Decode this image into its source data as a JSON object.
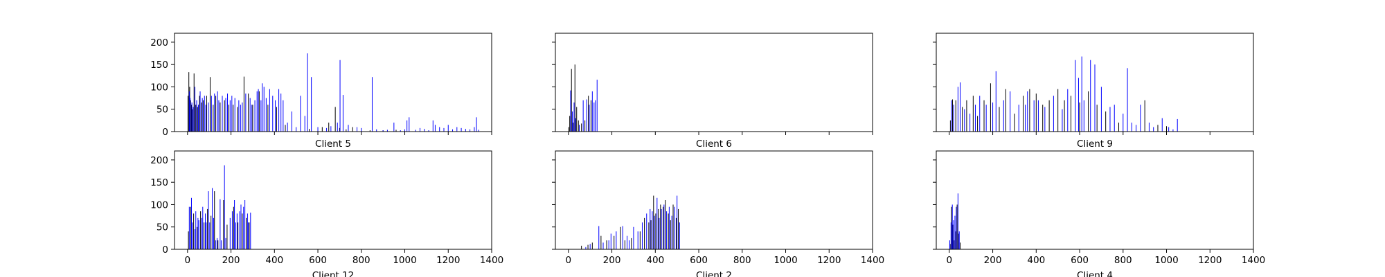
{
  "chart_data": [
    {
      "type": "bar",
      "title": "Client 5",
      "xlabel": "",
      "ylabel": "",
      "xlim": [
        -60,
        1400
      ],
      "ylim": [
        0,
        220
      ],
      "xticks": [],
      "yticks": [
        0,
        50,
        100,
        150,
        200
      ],
      "series": [
        {
          "color": "#000000",
          "x": [
            2,
            6,
            10,
            14,
            18,
            22,
            30,
            38,
            46,
            55,
            64,
            72,
            88,
            104,
            118,
            130,
            150,
            170,
            190,
            210,
            230,
            260,
            280,
            300,
            330,
            370,
            410,
            450,
            560,
            620,
            650,
            680,
            700,
            730,
            760,
            840,
            900,
            960
          ],
          "values": [
            80,
            133,
            100,
            70,
            60,
            50,
            130,
            60,
            55,
            80,
            65,
            70,
            80,
            122,
            60,
            80,
            65,
            70,
            60,
            60,
            55,
            123,
            85,
            60,
            90,
            60,
            55,
            15,
            6,
            10,
            20,
            55,
            8,
            5,
            10,
            3,
            3,
            4
          ]
        },
        {
          "color": "#0000ff",
          "x": [
            8,
            12,
            20,
            26,
            34,
            42,
            50,
            58,
            68,
            78,
            84,
            96,
            110,
            124,
            138,
            144,
            160,
            176,
            184,
            196,
            204,
            218,
            236,
            244,
            252,
            268,
            288,
            296,
            310,
            320,
            326,
            338,
            344,
            352,
            362,
            378,
            392,
            404,
            420,
            430,
            440,
            460,
            480,
            500,
            520,
            540,
            552,
            570,
            600,
            640,
            660,
            690,
            702,
            716,
            740,
            780,
            800,
            850,
            870,
            900,
            920,
            950,
            980,
            1000,
            1010,
            1020,
            1050,
            1070,
            1090,
            1110,
            1130,
            1140,
            1160,
            1180,
            1200,
            1220,
            1240,
            1260,
            1280,
            1300,
            1320,
            1330,
            1340
          ],
          "values": [
            90,
            75,
            65,
            55,
            100,
            70,
            60,
            90,
            75,
            80,
            60,
            65,
            80,
            85,
            90,
            70,
            80,
            75,
            85,
            70,
            80,
            75,
            70,
            60,
            65,
            85,
            75,
            60,
            70,
            90,
            95,
            70,
            108,
            100,
            75,
            95,
            80,
            70,
            95,
            85,
            70,
            20,
            45,
            10,
            80,
            35,
            175,
            122,
            10,
            8,
            12,
            20,
            160,
            82,
            15,
            10,
            8,
            122,
            5,
            3,
            4,
            20,
            3,
            5,
            25,
            32,
            4,
            8,
            6,
            3,
            25,
            15,
            10,
            8,
            15,
            5,
            10,
            8,
            6,
            5,
            10,
            32,
            4
          ]
        }
      ]
    },
    {
      "type": "bar",
      "title": "Client 6",
      "xlabel": "",
      "ylabel": "",
      "xlim": [
        -60,
        1400
      ],
      "ylim": [
        0,
        220
      ],
      "xticks": [],
      "yticks": [],
      "series": [
        {
          "color": "#000000",
          "x": [
            2,
            6,
            14,
            22,
            30,
            38,
            46,
            60,
            76,
            92,
            104
          ],
          "values": [
            10,
            35,
            140,
            20,
            150,
            55,
            25,
            18,
            25,
            80,
            70
          ]
        },
        {
          "color": "#0000ff",
          "x": [
            10,
            18,
            26,
            34,
            50,
            68,
            84,
            96,
            110,
            118,
            124,
            132
          ],
          "values": [
            92,
            45,
            65,
            30,
            15,
            70,
            72,
            60,
            90,
            65,
            70,
            116
          ]
        }
      ]
    },
    {
      "type": "bar",
      "title": "Client 9",
      "xlabel": "",
      "ylabel": "",
      "xlim": [
        -60,
        1400
      ],
      "ylim": [
        0,
        220
      ],
      "xticks": [],
      "yticks": [],
      "series": [
        {
          "color": "#000000",
          "x": [
            5,
            15,
            30,
            60,
            80,
            110,
            130,
            160,
            190,
            230,
            260,
            300,
            340,
            370,
            400,
            430,
            460,
            500,
            530,
            560,
            600,
            640,
            680,
            720,
            780,
            900,
            960,
            1000
          ],
          "values": [
            25,
            72,
            70,
            55,
            70,
            80,
            35,
            70,
            108,
            55,
            95,
            40,
            80,
            95,
            85,
            60,
            70,
            95,
            70,
            80,
            65,
            90,
            60,
            45,
            20,
            70,
            15,
            12
          ]
        },
        {
          "color": "#0000ff",
          "x": [
            10,
            20,
            40,
            50,
            70,
            95,
            120,
            140,
            170,
            200,
            215,
            250,
            280,
            320,
            350,
            360,
            390,
            410,
            440,
            480,
            520,
            545,
            580,
            595,
            610,
            620,
            650,
            670,
            700,
            740,
            760,
            800,
            820,
            840,
            860,
            880,
            920,
            940,
            980,
            1010,
            1030,
            1050
          ],
          "values": [
            70,
            60,
            100,
            110,
            50,
            40,
            60,
            80,
            60,
            65,
            135,
            70,
            90,
            60,
            60,
            90,
            70,
            70,
            55,
            80,
            50,
            95,
            160,
            120,
            168,
            70,
            160,
            150,
            100,
            55,
            60,
            40,
            142,
            20,
            15,
            60,
            20,
            10,
            30,
            10,
            5,
            28
          ]
        }
      ]
    },
    {
      "type": "bar",
      "title": "Client 12",
      "xlabel": "",
      "ylabel": "",
      "xlim": [
        -60,
        1400
      ],
      "ylim": [
        0,
        220
      ],
      "xticks": [
        0,
        200,
        400,
        600,
        800,
        1000,
        1200,
        1400
      ],
      "yticks": [
        0,
        50,
        100,
        150,
        200
      ],
      "series": [
        {
          "color": "#000000",
          "x": [
            4,
            14,
            28,
            44,
            60,
            76,
            92,
            108,
            124,
            140,
            166,
            182,
            212,
            232,
            252,
            270,
            284
          ],
          "values": [
            40,
            95,
            80,
            50,
            85,
            60,
            90,
            75,
            130,
            20,
            110,
            55,
            95,
            60,
            80,
            70,
            60
          ]
        },
        {
          "color": "#0000ff",
          "x": [
            8,
            18,
            22,
            34,
            38,
            48,
            52,
            66,
            70,
            82,
            86,
            96,
            102,
            114,
            120,
            130,
            136,
            150,
            156,
            170,
            176,
            196,
            206,
            216,
            222,
            228,
            240,
            246,
            258,
            264,
            276,
            280,
            290
          ],
          "values": [
            95,
            115,
            60,
            45,
            85,
            70,
            65,
            70,
            95,
            80,
            60,
            130,
            60,
            137,
            70,
            20,
            25,
            112,
            20,
            188,
            25,
            70,
            85,
            110,
            60,
            80,
            85,
            100,
            95,
            110,
            80,
            60,
            82
          ]
        }
      ]
    },
    {
      "type": "bar",
      "title": "Client 2",
      "xlabel": "",
      "ylabel": "",
      "xlim": [
        -60,
        1400
      ],
      "ylim": [
        0,
        220
      ],
      "xticks": [
        0,
        200,
        400,
        600,
        800,
        1000,
        1200,
        1400
      ],
      "yticks": [],
      "series": [
        {
          "color": "#000000",
          "x": [
            60,
            90,
            110,
            150,
            176,
            210,
            240,
            260,
            290,
            330,
            350,
            370,
            380,
            392,
            402,
            414,
            424,
            436,
            446,
            460,
            470,
            482,
            496,
            506
          ],
          "values": [
            8,
            10,
            15,
            30,
            20,
            30,
            50,
            20,
            25,
            40,
            70,
            60,
            65,
            120,
            80,
            90,
            100,
            95,
            110,
            80,
            65,
            100,
            70,
            90
          ]
        },
        {
          "color": "#0000ff",
          "x": [
            80,
            100,
            140,
            160,
            186,
            196,
            220,
            250,
            270,
            280,
            300,
            320,
            340,
            360,
            376,
            386,
            396,
            408,
            418,
            428,
            440,
            452,
            464,
            476,
            488,
            500,
            512
          ],
          "values": [
            5,
            12,
            52,
            15,
            20,
            35,
            40,
            52,
            30,
            20,
            50,
            40,
            60,
            80,
            90,
            85,
            75,
            115,
            70,
            90,
            100,
            85,
            95,
            75,
            95,
            120,
            60
          ]
        }
      ]
    },
    {
      "type": "bar",
      "title": "Client 4",
      "xlabel": "",
      "ylabel": "",
      "xlim": [
        -60,
        1400
      ],
      "ylim": [
        0,
        220
      ],
      "xticks": [
        0,
        200,
        400,
        600,
        800,
        1000,
        1200,
        1400
      ],
      "yticks": [],
      "series": [
        {
          "color": "#000000",
          "x": [
            4,
            10,
            16,
            22,
            30,
            36,
            42,
            50
          ],
          "values": [
            12,
            95,
            55,
            20,
            40,
            100,
            35,
            15
          ]
        },
        {
          "color": "#0000ff",
          "x": [
            2,
            8,
            14,
            20,
            26,
            32,
            40,
            46
          ],
          "values": [
            20,
            60,
            100,
            65,
            75,
            95,
            125,
            40
          ]
        }
      ]
    }
  ]
}
